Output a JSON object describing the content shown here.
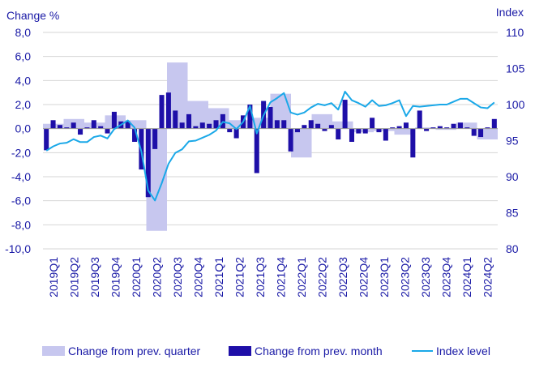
{
  "chart_data": {
    "type": "bar+line",
    "left_axis_title": "Change %",
    "right_axis_title": "Index",
    "left_ticks": [
      "8,0",
      "6,0",
      "4,0",
      "2,0",
      "0,0",
      "-2,0",
      "-4,0",
      "-6,0",
      "-8,0",
      "-10,0"
    ],
    "right_ticks": [
      "110",
      "105",
      "100",
      "95",
      "90",
      "85",
      "80"
    ],
    "ylim_left": [
      -10,
      8
    ],
    "ylim_right": [
      80,
      110
    ],
    "grid": "horizontal",
    "x_labels": [
      "2019Q1",
      "2019Q2",
      "2019Q3",
      "2019Q4",
      "2020Q1",
      "2020Q2",
      "2020Q3",
      "2020Q4",
      "2021Q1",
      "2021Q2",
      "2021Q3",
      "2021Q4",
      "2022Q1",
      "2022Q2",
      "2022Q3",
      "2022Q4",
      "2023Q1",
      "2023Q2",
      "2023Q3",
      "2023Q4",
      "2024Q1",
      "2024Q2"
    ],
    "legend_placement": "bottom",
    "colors": {
      "quarter": "#c7c7ef",
      "month": "#1e0fa8",
      "index": "#1aa8e8",
      "text": "#1a1aa6",
      "grid": "#d6d6d6"
    },
    "series": [
      {
        "name": "Change from prev. quarter",
        "kind": "bar-quarterly",
        "values": [
          0.4,
          0.8,
          0.5,
          1.1,
          0.7,
          -8.5,
          5.5,
          2.3,
          1.7,
          0.7,
          0.9,
          2.9,
          -2.4,
          1.2,
          0.6,
          -0.3,
          -0.2,
          -0.5,
          0.1,
          -0.1,
          0.5,
          -0.9
        ]
      },
      {
        "name": "Change from prev. month",
        "kind": "bar-monthly",
        "values": [
          -1.8,
          0.7,
          0.3,
          0.1,
          0.5,
          -0.5,
          0.1,
          0.7,
          0.2,
          -0.4,
          1.4,
          0.6,
          0.6,
          -1.1,
          -3.4,
          -5.7,
          -1.7,
          2.8,
          3.0,
          1.5,
          0.5,
          1.2,
          0.2,
          0.5,
          0.4,
          0.7,
          1.2,
          -0.3,
          -0.8,
          1.1,
          2.0,
          -3.7,
          2.3,
          1.8,
          0.7,
          0.7,
          -1.9,
          -0.3,
          0.3,
          0.7,
          0.4,
          -0.2,
          0.3,
          -0.9,
          2.4,
          -1.1,
          -0.4,
          -0.4,
          0.9,
          -0.3,
          -1.0,
          0.1,
          0.2,
          0.5,
          -2.4,
          1.5,
          -0.2,
          0.1,
          0.2,
          0.1,
          0.4,
          0.5,
          0.1,
          -0.6,
          -0.7,
          0.1,
          0.8
        ]
      },
      {
        "name": "Index level",
        "kind": "line",
        "values": [
          93.6,
          94.2,
          94.6,
          94.7,
          95.2,
          94.8,
          94.8,
          95.5,
          95.7,
          95.3,
          96.6,
          97.2,
          97.8,
          96.8,
          93.5,
          88.1,
          86.7,
          89.1,
          91.8,
          93.3,
          93.8,
          94.9,
          95.0,
          95.4,
          95.8,
          96.4,
          97.6,
          97.4,
          96.6,
          97.6,
          99.8,
          96.0,
          98.5,
          100.3,
          100.9,
          101.6,
          98.9,
          98.6,
          98.9,
          99.6,
          100.1,
          99.9,
          100.2,
          99.3,
          101.8,
          100.6,
          100.2,
          99.7,
          100.6,
          99.8,
          99.9,
          100.2,
          100.6,
          98.4,
          99.8,
          99.7,
          99.8,
          99.9,
          100.0,
          100.0,
          100.4,
          100.8,
          100.8,
          100.2,
          99.6,
          99.5,
          100.3
        ]
      }
    ]
  }
}
